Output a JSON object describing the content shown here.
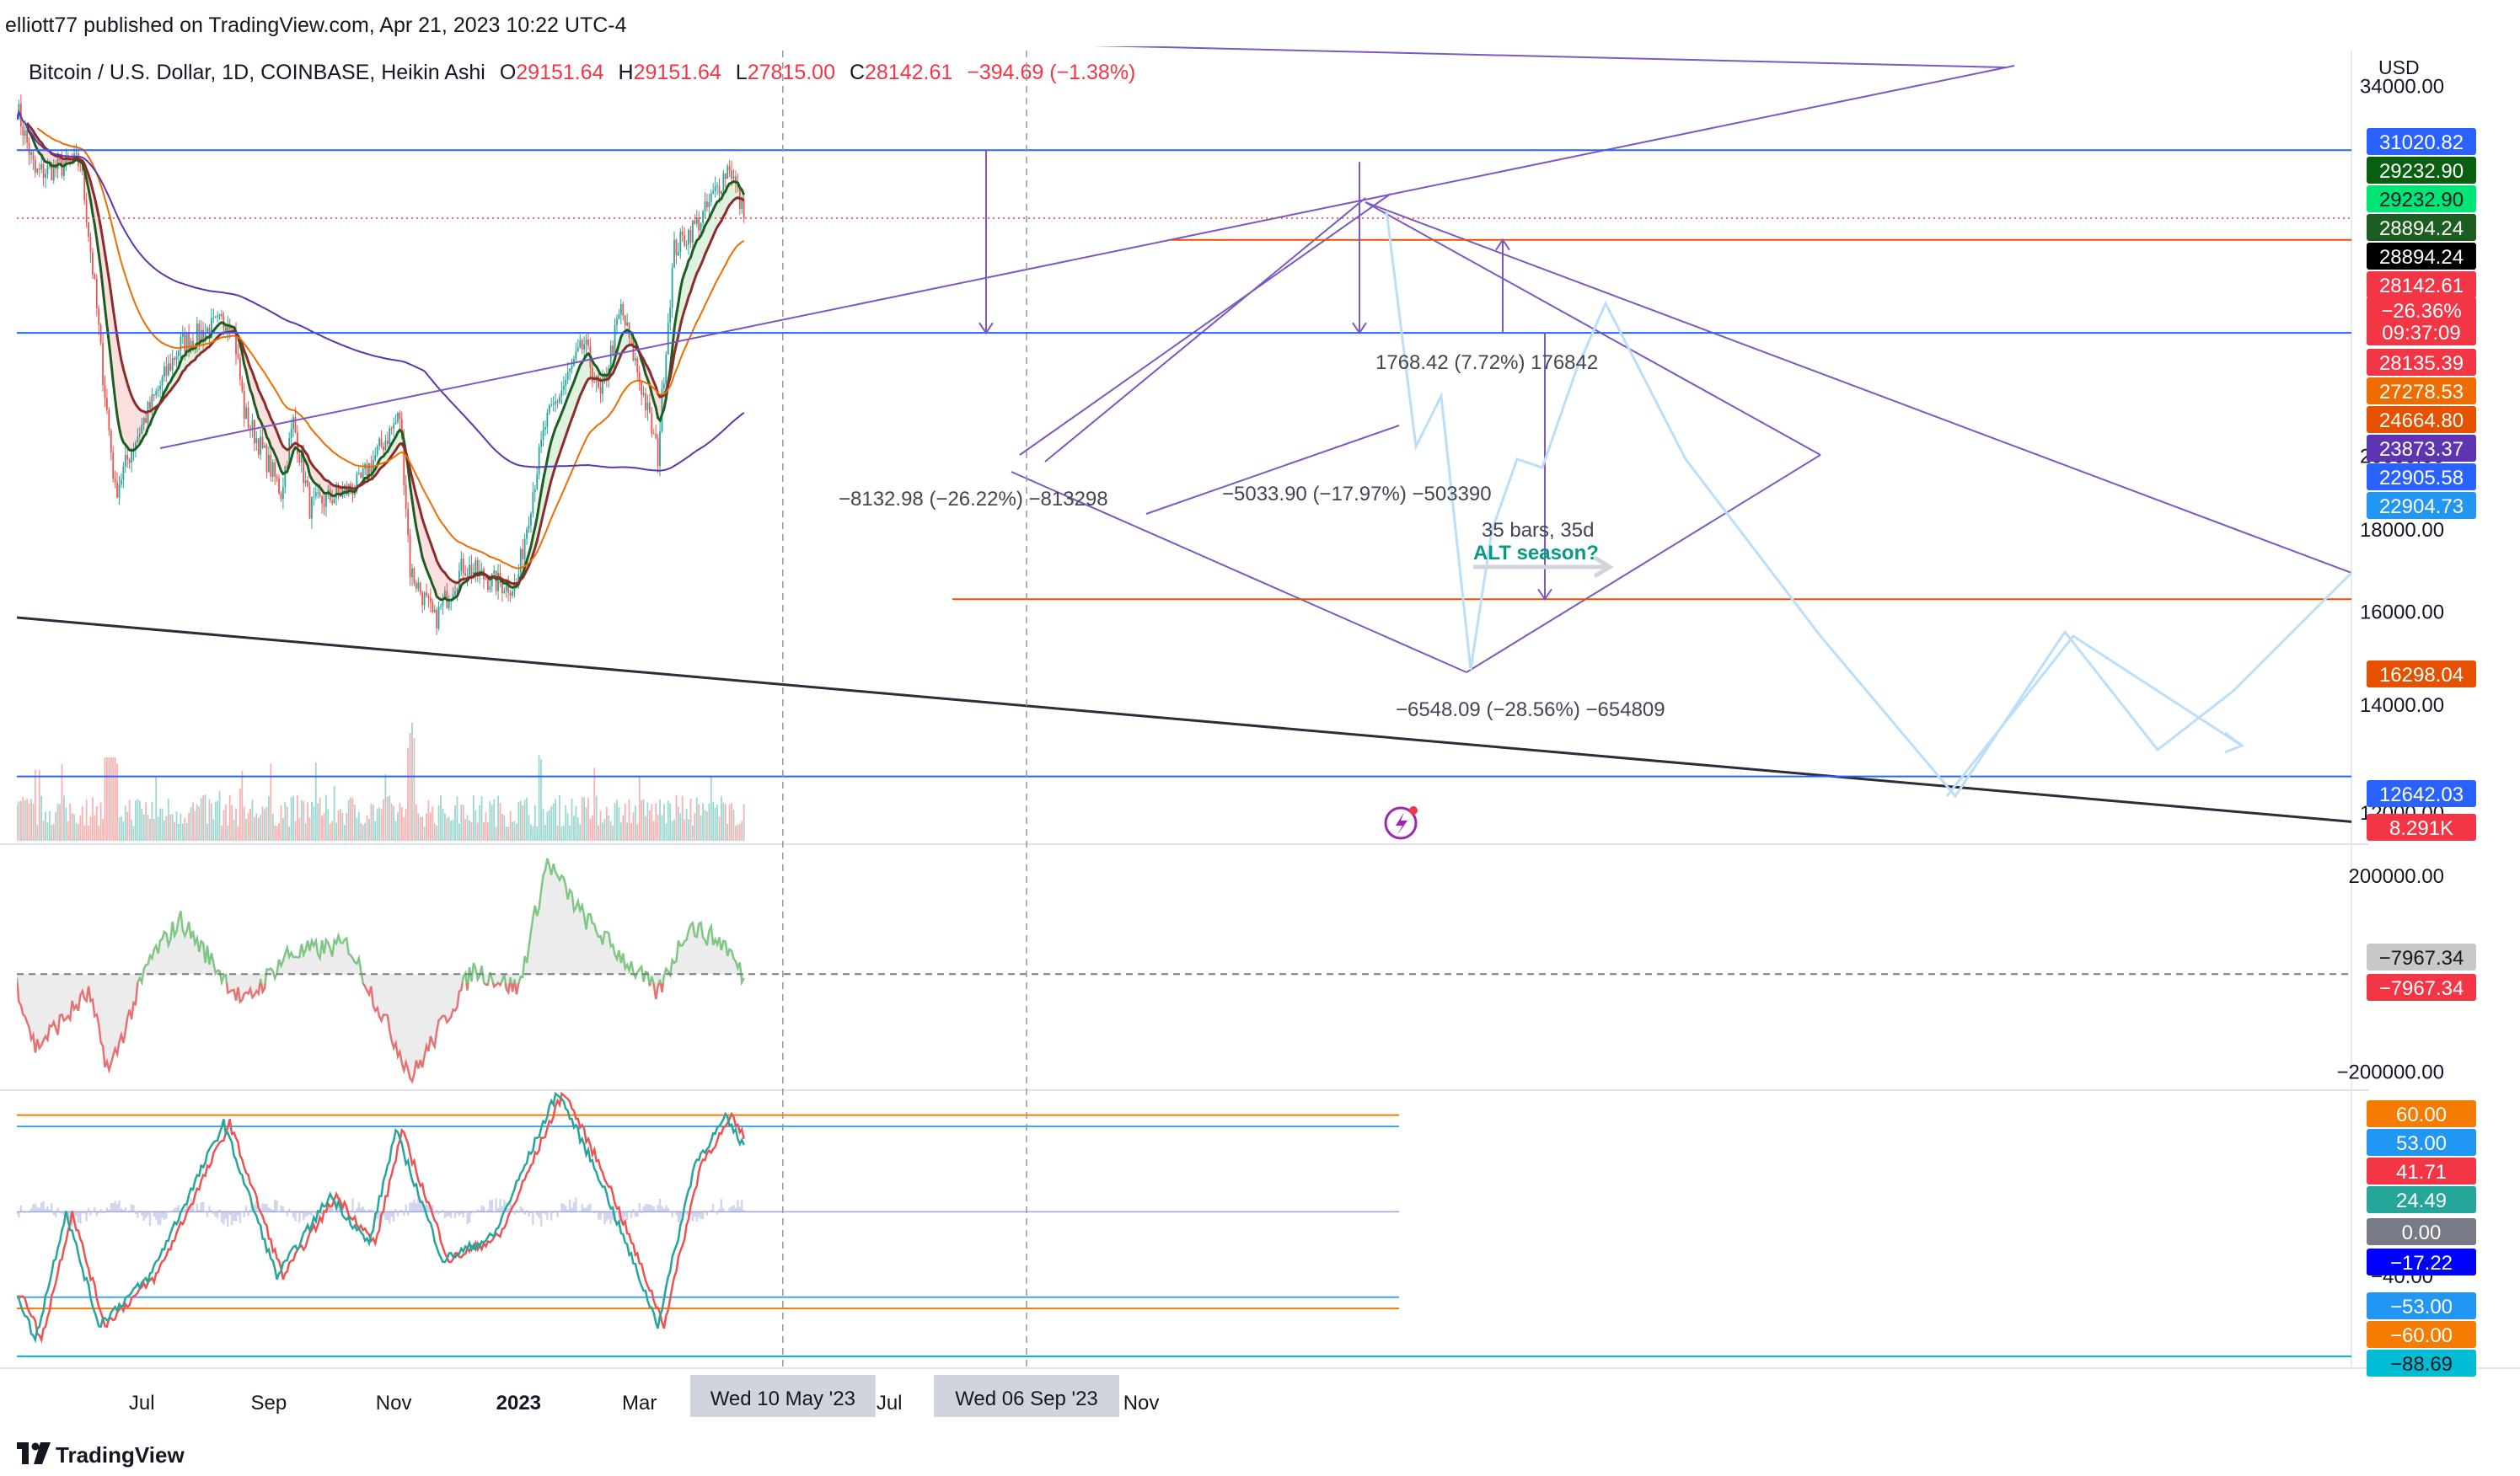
{
  "header": {
    "published": "elliott77 published on TradingView.com, Apr 21, 2023 10:22 UTC-4",
    "symbol": "Bitcoin / U.S. Dollar, 1D, COINBASE, Heikin Ashi",
    "o_label": "O",
    "o_value": "29151.64",
    "h_label": "H",
    "h_value": "29151.64",
    "l_label": "L",
    "l_value": "27815.00",
    "c_label": "C",
    "c_value": "28142.61",
    "change": "−394.69 (−1.38%)"
  },
  "footer": {
    "brand": "TradingView"
  },
  "colors": {
    "up": "#26a69a",
    "down": "#ef5350",
    "trend": "#7e57c2",
    "hline": "#2962ff",
    "orange": "#e65100",
    "black_trend": "#2a2e39",
    "projection": "#bbdefb"
  },
  "chart_data": [
    {
      "type": "candlestick",
      "title": "Bitcoin / U.S. Dollar, 1D, COINBASE, Heikin Ashi",
      "currency": "USD",
      "x_ticks": [
        "Jul",
        "Sep",
        "Nov",
        "2023",
        "Mar",
        "Jul",
        "Nov"
      ],
      "x_highlight_labels": [
        "Wed 10 May '23",
        "Wed 06 Sep '23"
      ],
      "y_ticks": [
        "34000.00",
        "20000.00",
        "18000.00",
        "16000.00",
        "14000.00",
        "12000.00"
      ],
      "ylim": [
        11500,
        36000
      ],
      "price_anchors": [
        {
          "date": "2022-05-01",
          "price": 33000
        },
        {
          "date": "2022-05-10",
          "price": 30000
        },
        {
          "date": "2022-06-01",
          "price": 30500
        },
        {
          "date": "2022-06-12",
          "price": 22500
        },
        {
          "date": "2022-06-18",
          "price": 19000
        },
        {
          "date": "2022-06-28",
          "price": 20500
        },
        {
          "date": "2022-07-20",
          "price": 23500
        },
        {
          "date": "2022-08-14",
          "price": 24400
        },
        {
          "date": "2022-08-20",
          "price": 21300
        },
        {
          "date": "2022-09-07",
          "price": 19000
        },
        {
          "date": "2022-09-13",
          "price": 21000
        },
        {
          "date": "2022-09-21",
          "price": 18600
        },
        {
          "date": "2022-10-15",
          "price": 19200
        },
        {
          "date": "2022-11-04",
          "price": 21200
        },
        {
          "date": "2022-11-09",
          "price": 17000
        },
        {
          "date": "2022-11-21",
          "price": 15800
        },
        {
          "date": "2022-12-05",
          "price": 17100
        },
        {
          "date": "2022-12-20",
          "price": 16700
        },
        {
          "date": "2022-12-31",
          "price": 16600
        },
        {
          "date": "2023-01-14",
          "price": 20900
        },
        {
          "date": "2023-02-02",
          "price": 23500
        },
        {
          "date": "2023-02-10",
          "price": 21700
        },
        {
          "date": "2023-02-20",
          "price": 24700
        },
        {
          "date": "2023-03-10",
          "price": 20000
        },
        {
          "date": "2023-03-18",
          "price": 26900
        },
        {
          "date": "2023-04-01",
          "price": 28200
        },
        {
          "date": "2023-04-14",
          "price": 30400
        },
        {
          "date": "2023-04-21",
          "price": 28142
        }
      ],
      "price_labels": [
        {
          "value": "31020.82",
          "bg": "#2962ff"
        },
        {
          "value": "29232.90",
          "bg": "#0a5e10"
        },
        {
          "value": "29232.90",
          "bg": "#00e676",
          "fg": "#131722"
        },
        {
          "value": "28894.24",
          "bg": "#1b5e20"
        },
        {
          "value": "28894.24",
          "bg": "#000000"
        },
        {
          "value": "28142.61",
          "bg": "#f23645"
        },
        {
          "value": "−26.36%",
          "bg": "#f23645"
        },
        {
          "value": "09:37:09",
          "bg": "#f23645"
        },
        {
          "value": "28135.39",
          "bg": "#f23645"
        },
        {
          "value": "27278.53",
          "bg": "#ef6c00"
        },
        {
          "value": "24664.80",
          "bg": "#e65100"
        },
        {
          "value": "23873.37",
          "bg": "#5e35b1"
        },
        {
          "value": "22905.58",
          "bg": "#2962ff"
        },
        {
          "value": "22904.73",
          "bg": "#2196f3"
        },
        {
          "value": "16298.04",
          "bg": "#e65100"
        },
        {
          "value": "12642.03",
          "bg": "#2962ff"
        },
        {
          "value": "8.291K",
          "bg": "#f23645"
        }
      ],
      "horizontal_levels": [
        31020.82,
        23873.37,
        16298.04,
        12642.03,
        27278.53
      ],
      "annotations": [
        "−8132.98 (−26.22%) −813298",
        "−5033.90 (−17.97%) −503390",
        "1768.42 (7.72%) 176842",
        "35 bars, 35d",
        "ALT season?",
        "−6548.09 (−28.56%) −654809"
      ]
    },
    {
      "type": "area",
      "title": "Oscillator",
      "y_ticks": [
        "200000.00",
        "−200000.00"
      ],
      "ylim": [
        -230000,
        260000
      ],
      "last_value": -7967.34,
      "price_labels": [
        {
          "value": "−7967.34",
          "bg": "#c8c8c8",
          "fg": "#131722"
        },
        {
          "value": "−7967.34",
          "bg": "#f23645"
        }
      ],
      "anchors": [
        {
          "date": "2022-05-01",
          "value": -20000
        },
        {
          "date": "2022-05-10",
          "value": -150000
        },
        {
          "date": "2022-06-05",
          "value": -40000
        },
        {
          "date": "2022-06-15",
          "value": -200000
        },
        {
          "date": "2022-07-05",
          "value": 30000
        },
        {
          "date": "2022-07-20",
          "value": 110000
        },
        {
          "date": "2022-08-20",
          "value": -60000
        },
        {
          "date": "2022-09-10",
          "value": 40000
        },
        {
          "date": "2022-10-10",
          "value": 60000
        },
        {
          "date": "2022-11-10",
          "value": -210000
        },
        {
          "date": "2022-12-10",
          "value": 10000
        },
        {
          "date": "2023-01-01",
          "value": -30000
        },
        {
          "date": "2023-01-15",
          "value": 230000
        },
        {
          "date": "2023-02-01",
          "value": 120000
        },
        {
          "date": "2023-03-10",
          "value": -40000
        },
        {
          "date": "2023-03-25",
          "value": 100000
        },
        {
          "date": "2023-04-12",
          "value": 60000
        },
        {
          "date": "2023-04-21",
          "value": -7967
        }
      ]
    },
    {
      "type": "line",
      "title": "Stochastic RSI / WaveTrend",
      "y_ticks": [
        "−40.00"
      ],
      "ylim": [
        -95,
        75
      ],
      "levels": [
        60,
        53,
        -53,
        -60
      ],
      "price_labels": [
        {
          "value": "60.00",
          "bg": "#f57c00"
        },
        {
          "value": "53.00",
          "bg": "#2196f3"
        },
        {
          "value": "41.71",
          "bg": "#f23645"
        },
        {
          "value": "24.49",
          "bg": "#26a69a"
        },
        {
          "value": "0.00",
          "bg": "#787b86"
        },
        {
          "value": "−17.22",
          "bg": "#0000ff"
        },
        {
          "value": "−53.00",
          "bg": "#2196f3"
        },
        {
          "value": "−60.00",
          "bg": "#f57c00"
        },
        {
          "value": "−88.69",
          "bg": "#00bcd4",
          "fg": "#131722"
        }
      ],
      "anchors": [
        {
          "date": "2022-05-01",
          "value": -50
        },
        {
          "date": "2022-05-10",
          "value": -80
        },
        {
          "date": "2022-05-25",
          "value": 0
        },
        {
          "date": "2022-06-10",
          "value": -70
        },
        {
          "date": "2022-07-05",
          "value": -40
        },
        {
          "date": "2022-08-10",
          "value": 55
        },
        {
          "date": "2022-09-05",
          "value": -40
        },
        {
          "date": "2022-10-01",
          "value": 10
        },
        {
          "date": "2022-10-20",
          "value": -20
        },
        {
          "date": "2022-11-02",
          "value": 50
        },
        {
          "date": "2022-11-25",
          "value": -30
        },
        {
          "date": "2022-12-20",
          "value": -15
        },
        {
          "date": "2023-01-20",
          "value": 75
        },
        {
          "date": "2023-02-10",
          "value": 20
        },
        {
          "date": "2023-03-10",
          "value": -70
        },
        {
          "date": "2023-03-28",
          "value": 30
        },
        {
          "date": "2023-04-12",
          "value": 58
        },
        {
          "date": "2023-04-21",
          "value": 41
        }
      ]
    }
  ]
}
